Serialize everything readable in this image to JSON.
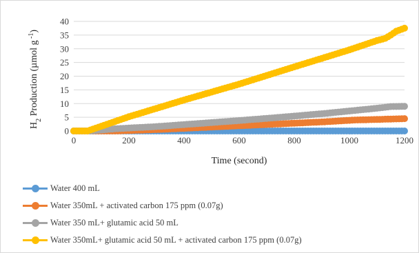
{
  "chart_data": {
    "type": "line",
    "title": "",
    "ylabel": "H2 Production (µmol g-1)",
    "ylabel_parts": {
      "pre": "H",
      "sub": "2",
      "mid": " Production (µmol g",
      "sup": " -1",
      "post": ")"
    },
    "xlabel": "Time (second)",
    "xlim": [
      0,
      1200
    ],
    "ylim": [
      0,
      40
    ],
    "x_ticks": [
      0,
      200,
      400,
      600,
      800,
      1000,
      1200
    ],
    "y_ticks": [
      0,
      5,
      10,
      15,
      20,
      25,
      30,
      35,
      40
    ],
    "grid": "horizontal",
    "legend_position": "bottom",
    "series": [
      {
        "name": "Water 400 mL",
        "color": "#5b9bd5",
        "points": [
          [
            0,
            0
          ],
          [
            1200,
            0
          ]
        ]
      },
      {
        "name": "Water 350mL + activated carbon 175 ppm (0.07g)",
        "color": "#ed7d31",
        "points": [
          [
            0,
            0
          ],
          [
            150,
            0
          ],
          [
            300,
            0.5
          ],
          [
            450,
            1.2
          ],
          [
            600,
            1.9
          ],
          [
            750,
            2.6
          ],
          [
            900,
            3.3
          ],
          [
            1020,
            4.0
          ],
          [
            1100,
            4.2
          ],
          [
            1200,
            4.5
          ]
        ]
      },
      {
        "name": "Water 350 mL+ glutamic acid 50 mL",
        "color": "#a5a5a5",
        "points": [
          [
            0,
            0
          ],
          [
            60,
            0
          ],
          [
            150,
            0.8
          ],
          [
            300,
            1.6
          ],
          [
            450,
            2.7
          ],
          [
            600,
            3.8
          ],
          [
            750,
            5.0
          ],
          [
            900,
            6.3
          ],
          [
            1000,
            7.3
          ],
          [
            1100,
            8.3
          ],
          [
            1150,
            8.9
          ],
          [
            1200,
            9.0
          ]
        ]
      },
      {
        "name": "Water 350mL+ glutamic acid 50 mL + activated carbon 175 ppm (0.07g)",
        "color": "#ffc000",
        "points": [
          [
            0,
            0
          ],
          [
            50,
            0
          ],
          [
            200,
            5.2
          ],
          [
            400,
            11.3
          ],
          [
            600,
            17.1
          ],
          [
            800,
            23.4
          ],
          [
            1000,
            29.6
          ],
          [
            1100,
            33.0
          ],
          [
            1130,
            33.8
          ],
          [
            1150,
            35.0
          ],
          [
            1170,
            36.4
          ],
          [
            1200,
            37.5
          ]
        ]
      }
    ]
  }
}
